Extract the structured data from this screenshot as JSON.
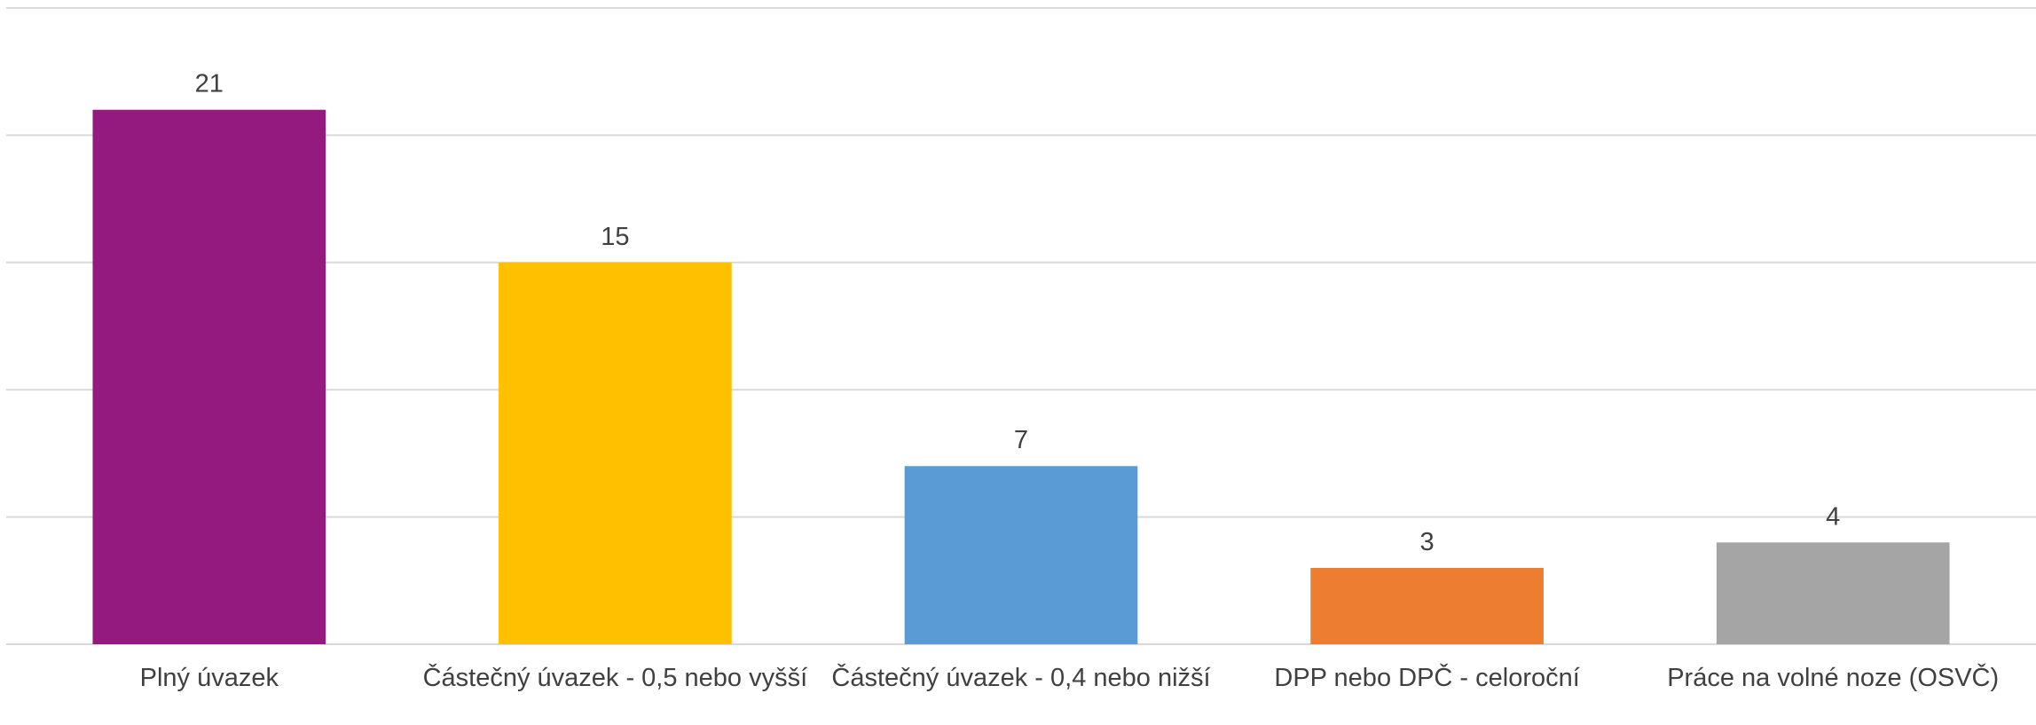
{
  "chart_data": {
    "type": "bar",
    "categories": [
      "Plný úvazek",
      "Částečný úvazek - 0,5 nebo vyšší",
      "Částečný úvazek - 0,4 nebo nižší",
      "DPP nebo DPČ - celoroční",
      "Práce na volné noze (OSVČ)"
    ],
    "values": [
      21,
      15,
      7,
      3,
      4
    ],
    "colors": [
      "#941a80",
      "#ffc000",
      "#5b9bd5",
      "#ed7d31",
      "#a5a5a5"
    ],
    "ylim": [
      0,
      25
    ],
    "yticks": [
      0,
      5,
      10,
      15,
      20,
      25
    ],
    "grid": true
  }
}
